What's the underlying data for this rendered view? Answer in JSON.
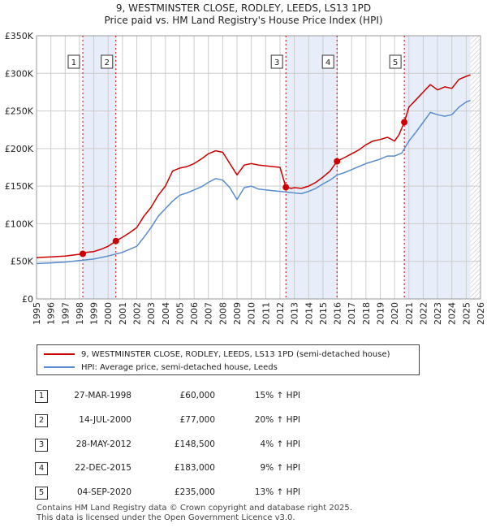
{
  "title_line1": "9, WESTMINSTER CLOSE, RODLEY, LEEDS, LS13 1PD",
  "title_line2": "Price paid vs. HM Land Registry's House Price Index (HPI)",
  "legend": {
    "property": "9, WESTMINSTER CLOSE, RODLEY, LEEDS, LS13 1PD (semi-detached house)",
    "hpi": "HPI: Average price, semi-detached house, Leeds"
  },
  "colors": {
    "property": "#cc0000",
    "hpi": "#5b8ccc",
    "shade": "#e8eef9",
    "grid": "#cccccc",
    "marker_line": "#cc0000"
  },
  "sales": [
    {
      "id": "1",
      "date": "27-MAR-1998",
      "price": "£60,000",
      "hpi": "15% ↑ HPI"
    },
    {
      "id": "2",
      "date": "14-JUL-2000",
      "price": "£77,000",
      "hpi": "20% ↑ HPI"
    },
    {
      "id": "3",
      "date": "28-MAY-2012",
      "price": "£148,500",
      "hpi": "4% ↑ HPI"
    },
    {
      "id": "4",
      "date": "22-DEC-2015",
      "price": "£183,000",
      "hpi": "9% ↑ HPI"
    },
    {
      "id": "5",
      "date": "04-SEP-2020",
      "price": "£235,000",
      "hpi": "13% ↑ HPI"
    }
  ],
  "footer_line1": "Contains HM Land Registry data © Crown copyright and database right 2025.",
  "footer_line2": "This data is licensed under the Open Government Licence v3.0.",
  "chart_data": {
    "type": "line",
    "title": "9, WESTMINSTER CLOSE, RODLEY, LEEDS, LS13 1PD — Price paid vs. HM Land Registry's House Price Index (HPI)",
    "xlim": [
      1995,
      2026
    ],
    "ylim": [
      0,
      350000
    ],
    "x_ticks": [
      "1995",
      "1996",
      "1997",
      "1998",
      "1999",
      "2000",
      "2001",
      "2002",
      "2003",
      "2004",
      "2005",
      "2006",
      "2007",
      "2008",
      "2009",
      "2010",
      "2011",
      "2012",
      "2013",
      "2014",
      "2015",
      "2016",
      "2017",
      "2018",
      "2019",
      "2020",
      "2021",
      "2022",
      "2023",
      "2024",
      "2025",
      "2026"
    ],
    "y_ticks": [
      {
        "value": 0,
        "label": "£0"
      },
      {
        "value": 50000,
        "label": "£50K"
      },
      {
        "value": 100000,
        "label": "£100K"
      },
      {
        "value": 150000,
        "label": "£150K"
      },
      {
        "value": 200000,
        "label": "£200K"
      },
      {
        "value": 250000,
        "label": "£250K"
      },
      {
        "value": 300000,
        "label": "£300K"
      },
      {
        "value": 350000,
        "label": "£350K"
      }
    ],
    "future_from": 2025.3,
    "shaded_ranges": [
      [
        1998.23,
        2000.54
      ],
      [
        2012.41,
        2015.98
      ],
      [
        2020.68,
        2025.3
      ]
    ],
    "series": [
      {
        "name": "9, WESTMINSTER CLOSE, RODLEY, LEEDS, LS13 1PD (semi-detached house)",
        "x": [
          1995,
          1996,
          1997,
          1998.23,
          1998.5,
          1999,
          1999.5,
          2000,
          2000.54,
          2001,
          2001.5,
          2002,
          2002.5,
          2003,
          2003.5,
          2004,
          2004.5,
          2005,
          2005.5,
          2006,
          2006.5,
          2007,
          2007.5,
          2008,
          2008.5,
          2009,
          2009.5,
          2010,
          2010.5,
          2011,
          2011.5,
          2012,
          2012.41,
          2012.8,
          2013,
          2013.5,
          2014,
          2014.5,
          2015,
          2015.5,
          2015.98,
          2016.5,
          2017,
          2017.5,
          2018,
          2018.5,
          2019,
          2019.5,
          2020,
          2020.3,
          2020.68,
          2021,
          2021.5,
          2022,
          2022.5,
          2023,
          2023.5,
          2024,
          2024.5,
          2025,
          2025.3
        ],
        "y": [
          55000,
          56000,
          57000,
          60000,
          62000,
          63000,
          66000,
          70000,
          77000,
          82000,
          88000,
          95000,
          110000,
          122000,
          138000,
          150000,
          170000,
          174000,
          176000,
          180000,
          186000,
          193000,
          197000,
          195000,
          180000,
          165000,
          178000,
          180000,
          178000,
          177000,
          176000,
          175000,
          148500,
          147000,
          148000,
          147000,
          150000,
          155000,
          162000,
          170000,
          183000,
          188000,
          193000,
          198000,
          205000,
          210000,
          212000,
          215000,
          210000,
          218000,
          235000,
          255000,
          265000,
          275000,
          285000,
          278000,
          282000,
          280000,
          292000,
          296000,
          298000
        ]
      },
      {
        "name": "HPI: Average price, semi-detached house, Leeds",
        "x": [
          1995,
          1996,
          1997,
          1998,
          1999,
          2000,
          2001,
          2002,
          2002.5,
          2003,
          2003.5,
          2004,
          2004.5,
          2005,
          2005.5,
          2006,
          2006.5,
          2007,
          2007.5,
          2008,
          2008.5,
          2009,
          2009.5,
          2010,
          2010.5,
          2011,
          2011.5,
          2012,
          2012.5,
          2013,
          2013.5,
          2014,
          2014.5,
          2015,
          2015.5,
          2016,
          2016.5,
          2017,
          2017.5,
          2018,
          2018.5,
          2019,
          2019.5,
          2020,
          2020.5,
          2021,
          2021.5,
          2022,
          2022.5,
          2023,
          2023.5,
          2024,
          2024.5,
          2025,
          2025.3
        ],
        "y": [
          47000,
          48000,
          49000,
          51000,
          53000,
          57000,
          62000,
          70000,
          82000,
          95000,
          110000,
          120000,
          130000,
          138000,
          141000,
          145000,
          149000,
          155000,
          160000,
          158000,
          148000,
          132000,
          148000,
          150000,
          146000,
          145000,
          144000,
          143000,
          142000,
          141000,
          140000,
          143000,
          147000,
          153000,
          158000,
          165000,
          168000,
          172000,
          176000,
          180000,
          183000,
          186000,
          190000,
          190000,
          194000,
          210000,
          222000,
          235000,
          248000,
          245000,
          243000,
          245000,
          255000,
          262000,
          264000
        ]
      }
    ],
    "sale_points": [
      {
        "label": "1",
        "x": 1998.23,
        "y": 60000
      },
      {
        "label": "2",
        "x": 2000.54,
        "y": 77000
      },
      {
        "label": "3",
        "x": 2012.41,
        "y": 148500
      },
      {
        "label": "4",
        "x": 2015.98,
        "y": 183000
      },
      {
        "label": "5",
        "x": 2020.68,
        "y": 235000
      }
    ]
  }
}
